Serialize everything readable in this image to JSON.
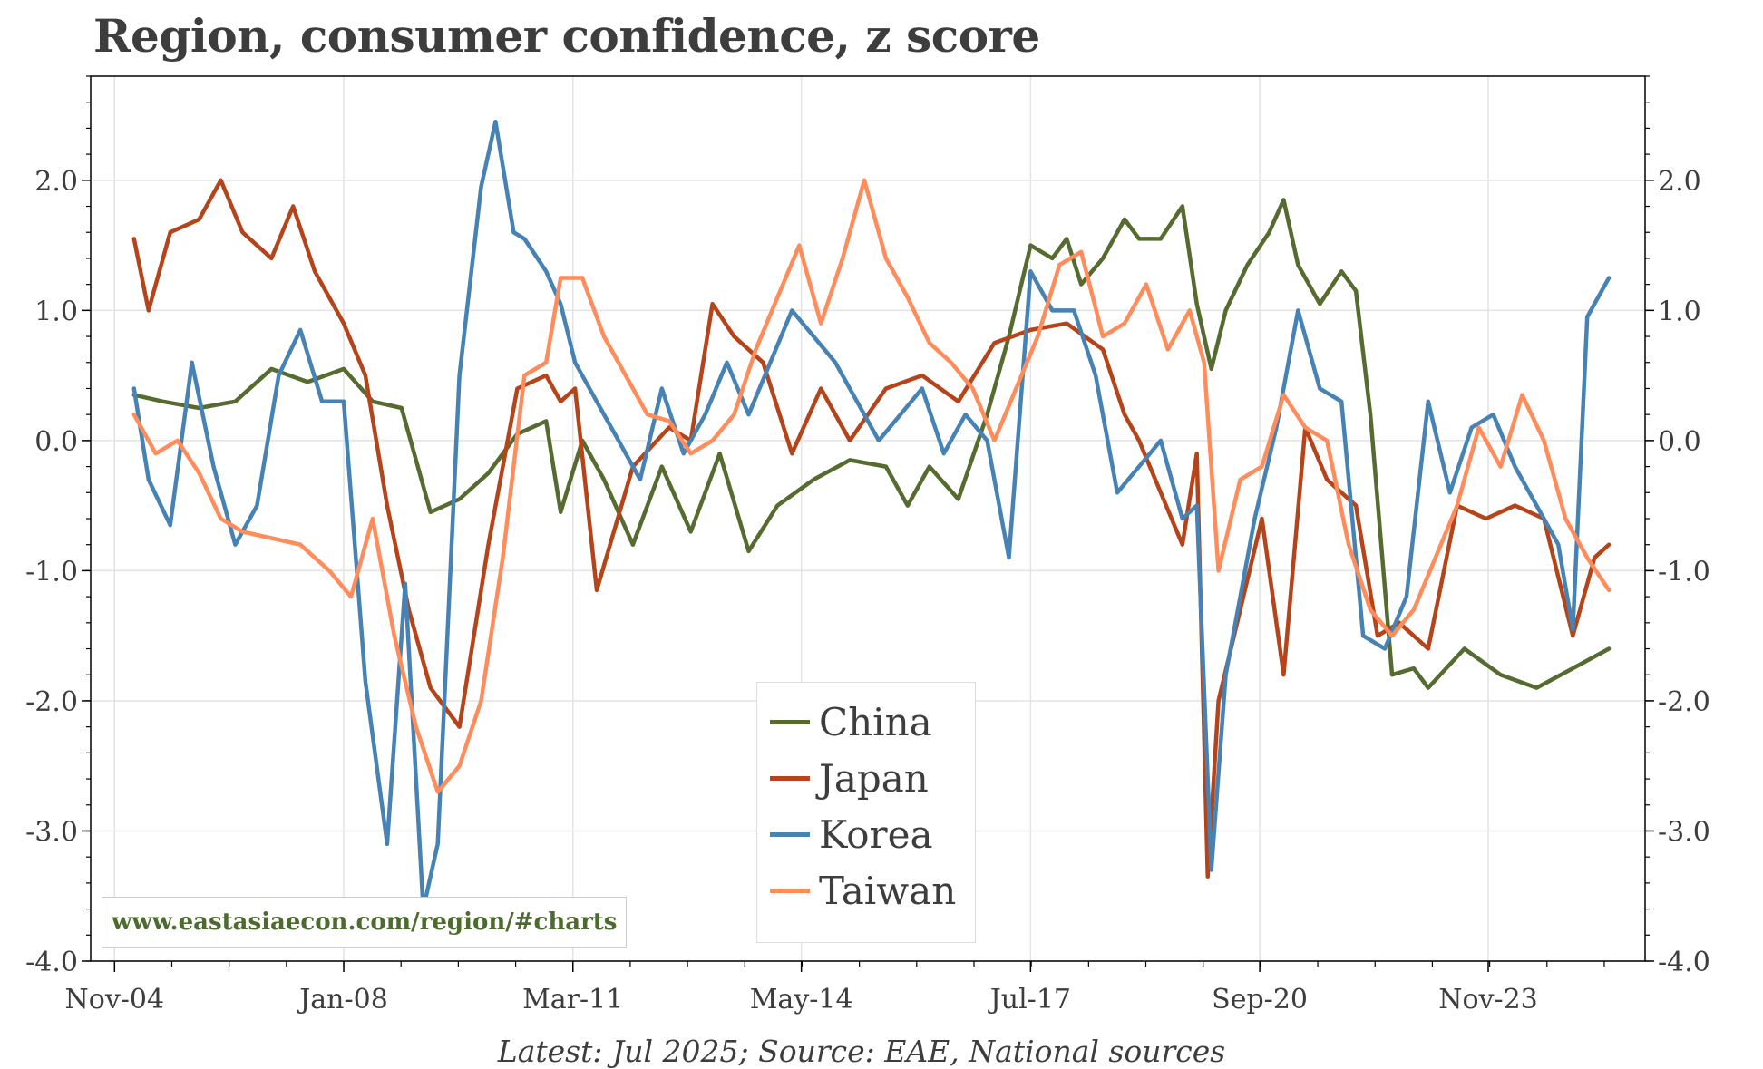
{
  "chart_data": {
    "type": "line",
    "title": "Region, consumer confidence, z score",
    "source": "Latest: Jul 2025; Source: EAE, National sources",
    "watermark": "www.eastasiaecon.com/region/#charts",
    "xlabel": "",
    "ylabel": "",
    "ylim": [
      -4.0,
      2.8
    ],
    "y_ticks": [
      "2.0",
      "1.0",
      "0.0",
      "-1.0",
      "-2.0",
      "-3.0",
      "-4.0"
    ],
    "y_tick_values": [
      2.0,
      1.0,
      0.0,
      -1.0,
      -2.0,
      -3.0,
      -4.0
    ],
    "x_range": [
      2004.5,
      2026.0
    ],
    "x_ticks": [
      "Nov-04",
      "Jan-08",
      "Mar-11",
      "May-14",
      "Jul-17",
      "Sep-20",
      "Nov-23"
    ],
    "x_tick_values": [
      2004.83,
      2008.0,
      2011.17,
      2014.33,
      2017.5,
      2020.67,
      2023.83
    ],
    "grid": true,
    "legend_position": "bottom-center",
    "series": [
      {
        "name": "China",
        "color": "#556b2f",
        "x": [
          2005.1,
          2005.5,
          2006.0,
          2006.5,
          2007.0,
          2007.5,
          2008.0,
          2008.4,
          2008.8,
          2009.2,
          2009.6,
          2010.0,
          2010.4,
          2010.8,
          2011.0,
          2011.3,
          2011.6,
          2012.0,
          2012.4,
          2012.8,
          2013.2,
          2013.6,
          2014.0,
          2014.5,
          2015.0,
          2015.5,
          2015.8,
          2016.1,
          2016.5,
          2016.9,
          2017.2,
          2017.5,
          2017.8,
          2018.0,
          2018.2,
          2018.5,
          2018.8,
          2019.0,
          2019.3,
          2019.6,
          2019.8,
          2020.0,
          2020.2,
          2020.5,
          2020.8,
          2021.0,
          2021.2,
          2021.5,
          2021.8,
          2022.0,
          2022.2,
          2022.5,
          2022.8,
          2023.0,
          2023.5,
          2024.0,
          2024.5,
          2025.0,
          2025.5
        ],
        "values": [
          0.35,
          0.3,
          0.25,
          0.3,
          0.55,
          0.45,
          0.55,
          0.3,
          0.25,
          -0.55,
          -0.45,
          -0.25,
          0.05,
          0.15,
          -0.55,
          0.0,
          -0.3,
          -0.8,
          -0.2,
          -0.7,
          -0.1,
          -0.85,
          -0.5,
          -0.3,
          -0.15,
          -0.2,
          -0.5,
          -0.2,
          -0.45,
          0.2,
          0.8,
          1.5,
          1.4,
          1.55,
          1.2,
          1.4,
          1.7,
          1.55,
          1.55,
          1.8,
          1.05,
          0.55,
          1.0,
          1.35,
          1.6,
          1.85,
          1.35,
          1.05,
          1.3,
          1.15,
          0.2,
          -1.8,
          -1.75,
          -1.9,
          -1.6,
          -1.8,
          -1.9,
          -1.75,
          -1.6
        ]
      },
      {
        "name": "Japan",
        "color": "#b5441a",
        "x": [
          2005.1,
          2005.3,
          2005.6,
          2006.0,
          2006.3,
          2006.6,
          2007.0,
          2007.3,
          2007.6,
          2008.0,
          2008.3,
          2008.6,
          2008.9,
          2009.2,
          2009.6,
          2010.0,
          2010.4,
          2010.8,
          2011.0,
          2011.2,
          2011.5,
          2012.0,
          2012.5,
          2012.8,
          2013.1,
          2013.4,
          2013.8,
          2014.2,
          2014.6,
          2015.0,
          2015.5,
          2016.0,
          2016.5,
          2017.0,
          2017.5,
          2018.0,
          2018.5,
          2018.8,
          2019.0,
          2019.3,
          2019.6,
          2019.8,
          2019.95,
          2020.1,
          2020.4,
          2020.7,
          2021.0,
          2021.3,
          2021.6,
          2022.0,
          2022.3,
          2022.6,
          2023.0,
          2023.4,
          2023.8,
          2024.2,
          2024.6,
          2025.0,
          2025.3,
          2025.5
        ],
        "values": [
          1.55,
          1.0,
          1.6,
          1.7,
          2.0,
          1.6,
          1.4,
          1.8,
          1.3,
          0.9,
          0.5,
          -0.5,
          -1.3,
          -1.9,
          -2.2,
          -0.8,
          0.4,
          0.5,
          0.3,
          0.4,
          -1.15,
          -0.2,
          0.1,
          0.0,
          1.05,
          0.8,
          0.6,
          -0.1,
          0.4,
          0.0,
          0.4,
          0.5,
          0.3,
          0.75,
          0.85,
          0.9,
          0.7,
          0.2,
          0.0,
          -0.4,
          -0.8,
          -0.1,
          -3.35,
          -2.0,
          -1.3,
          -0.6,
          -1.8,
          0.1,
          -0.3,
          -0.5,
          -1.5,
          -1.4,
          -1.6,
          -0.5,
          -0.6,
          -0.5,
          -0.6,
          -1.5,
          -0.9,
          -0.8
        ]
      },
      {
        "name": "Korea",
        "color": "#4682b4",
        "x": [
          2005.1,
          2005.3,
          2005.6,
          2005.9,
          2006.2,
          2006.5,
          2006.8,
          2007.1,
          2007.4,
          2007.7,
          2008.0,
          2008.3,
          2008.6,
          2008.85,
          2009.1,
          2009.3,
          2009.6,
          2009.9,
          2010.1,
          2010.35,
          2010.5,
          2010.8,
          2011.0,
          2011.2,
          2011.5,
          2011.8,
          2012.1,
          2012.4,
          2012.7,
          2013.0,
          2013.3,
          2013.6,
          2013.9,
          2014.2,
          2014.5,
          2014.8,
          2015.1,
          2015.4,
          2015.7,
          2016.0,
          2016.3,
          2016.6,
          2016.9,
          2017.2,
          2017.5,
          2017.8,
          2018.1,
          2018.4,
          2018.7,
          2019.0,
          2019.3,
          2019.6,
          2019.8,
          2020.0,
          2020.2,
          2020.4,
          2020.6,
          2020.9,
          2021.2,
          2021.5,
          2021.8,
          2022.1,
          2022.4,
          2022.7,
          2023.0,
          2023.3,
          2023.6,
          2023.9,
          2024.2,
          2024.5,
          2024.8,
          2025.0,
          2025.2,
          2025.5
        ],
        "values": [
          0.4,
          -0.3,
          -0.65,
          0.6,
          -0.2,
          -0.8,
          -0.5,
          0.5,
          0.85,
          0.3,
          0.3,
          -1.85,
          -3.1,
          -1.1,
          -3.6,
          -3.1,
          0.5,
          1.95,
          2.45,
          1.6,
          1.55,
          1.3,
          1.05,
          0.6,
          0.3,
          0.0,
          -0.3,
          0.4,
          -0.1,
          0.2,
          0.6,
          0.2,
          0.6,
          1.0,
          0.8,
          0.6,
          0.3,
          0.0,
          0.2,
          0.4,
          -0.1,
          0.2,
          0.0,
          -0.9,
          1.3,
          1.0,
          1.0,
          0.5,
          -0.4,
          -0.2,
          0.0,
          -0.6,
          -0.5,
          -3.3,
          -1.8,
          -1.2,
          -0.6,
          0.1,
          1.0,
          0.4,
          0.3,
          -1.5,
          -1.6,
          -1.2,
          0.3,
          -0.4,
          0.1,
          0.2,
          -0.2,
          -0.5,
          -0.8,
          -1.45,
          0.95,
          1.25
        ]
      },
      {
        "name": "Taiwan",
        "color": "#ff8c5a",
        "x": [
          2005.1,
          2005.4,
          2005.7,
          2006.0,
          2006.3,
          2006.6,
          2007.0,
          2007.4,
          2007.8,
          2008.1,
          2008.4,
          2008.7,
          2009.0,
          2009.3,
          2009.6,
          2009.9,
          2010.2,
          2010.5,
          2010.8,
          2011.0,
          2011.3,
          2011.6,
          2011.9,
          2012.2,
          2012.5,
          2012.8,
          2013.1,
          2013.4,
          2013.7,
          2014.0,
          2014.3,
          2014.6,
          2014.9,
          2015.2,
          2015.5,
          2015.8,
          2016.1,
          2016.4,
          2016.7,
          2017.0,
          2017.3,
          2017.6,
          2017.9,
          2018.2,
          2018.5,
          2018.8,
          2019.1,
          2019.4,
          2019.7,
          2019.9,
          2020.1,
          2020.4,
          2020.7,
          2021.0,
          2021.3,
          2021.6,
          2021.9,
          2022.2,
          2022.5,
          2022.8,
          2023.1,
          2023.4,
          2023.7,
          2024.0,
          2024.3,
          2024.6,
          2024.9,
          2025.2,
          2025.5
        ],
        "values": [
          0.2,
          -0.1,
          0.0,
          -0.25,
          -0.6,
          -0.7,
          -0.75,
          -0.8,
          -1.0,
          -1.2,
          -0.6,
          -1.5,
          -2.2,
          -2.7,
          -2.5,
          -2.0,
          -0.9,
          0.5,
          0.6,
          1.25,
          1.25,
          0.8,
          0.5,
          0.2,
          0.15,
          -0.1,
          0.0,
          0.2,
          0.7,
          1.1,
          1.5,
          0.9,
          1.4,
          2.0,
          1.4,
          1.1,
          0.75,
          0.6,
          0.4,
          0.0,
          0.4,
          0.8,
          1.35,
          1.45,
          0.8,
          0.9,
          1.2,
          0.7,
          1.0,
          0.6,
          -1.0,
          -0.3,
          -0.2,
          0.35,
          0.1,
          0.0,
          -0.8,
          -1.3,
          -1.5,
          -1.3,
          -0.9,
          -0.5,
          0.1,
          -0.2,
          0.35,
          0.0,
          -0.6,
          -0.9,
          -1.15
        ]
      }
    ]
  }
}
